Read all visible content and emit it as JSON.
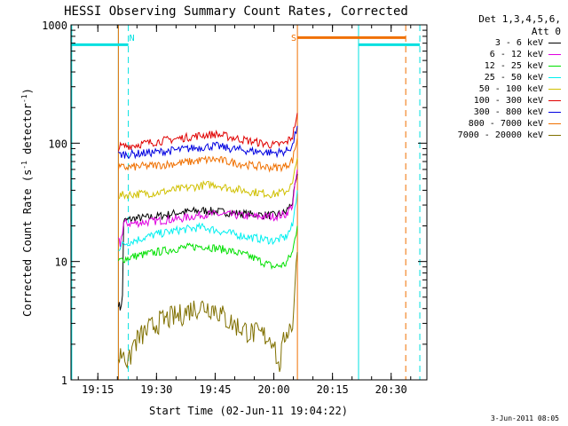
{
  "chart_data": {
    "type": "line",
    "title": "HESSI Observing Summary Count Rates, Corrected",
    "xlabel": "Start Time (02-Jun-11 19:04:22)",
    "ylabel_prefix": "Corrected Count Rate (s",
    "ylabel_exp1": "-1",
    "ylabel_mid": " detector",
    "ylabel_exp2": "-1",
    "ylabel_suffix": ")",
    "xlim": [
      19.1356,
      20.6523
    ],
    "ylim": [
      1,
      1000
    ],
    "yscale": "log",
    "x_ticks": [
      {
        "v": 19.25,
        "label": "19:15"
      },
      {
        "v": 19.5,
        "label": "19:30"
      },
      {
        "v": 19.75,
        "label": "19:45"
      },
      {
        "v": 20.0,
        "label": "20:00"
      },
      {
        "v": 20.25,
        "label": "20:15"
      },
      {
        "v": 20.5,
        "label": "20:30"
      }
    ],
    "y_ticks": [
      {
        "v": 1,
        "label": "1"
      },
      {
        "v": 10,
        "label": "10"
      },
      {
        "v": 100,
        "label": "100"
      },
      {
        "v": 1000,
        "label": "1000"
      }
    ],
    "legend_title": [
      "Det 1,3,4,5,6,",
      "Att 0"
    ],
    "legend_position": "right",
    "series": [
      {
        "name": "3 - 6 keV",
        "color": "#000000",
        "points": [
          [
            19.3375,
            4.5
          ],
          [
            19.345,
            4
          ],
          [
            19.355,
            5
          ],
          [
            19.36,
            22
          ],
          [
            19.4,
            23
          ],
          [
            19.5,
            24
          ],
          [
            19.6,
            26
          ],
          [
            19.7,
            27
          ],
          [
            19.8,
            26
          ],
          [
            19.9,
            25
          ],
          [
            20.0,
            24.5
          ],
          [
            20.05,
            26
          ],
          [
            20.08,
            32
          ],
          [
            20.1,
            55
          ]
        ]
      },
      {
        "name": "6 - 12 keV",
        "color": "#e000e0",
        "points": [
          [
            19.3375,
            15
          ],
          [
            19.345,
            14
          ],
          [
            19.355,
            18
          ],
          [
            19.36,
            21
          ],
          [
            19.4,
            21
          ],
          [
            19.5,
            22
          ],
          [
            19.6,
            23
          ],
          [
            19.7,
            25
          ],
          [
            19.8,
            25
          ],
          [
            19.9,
            24
          ],
          [
            20.0,
            24
          ],
          [
            20.05,
            25
          ],
          [
            20.08,
            30
          ],
          [
            20.1,
            60
          ]
        ]
      },
      {
        "name": "12 - 25 keV",
        "color": "#00e000",
        "points": [
          [
            19.3375,
            10
          ],
          [
            19.36,
            10.5
          ],
          [
            19.4,
            11
          ],
          [
            19.5,
            12
          ],
          [
            19.6,
            13
          ],
          [
            19.7,
            13.5
          ],
          [
            19.8,
            12.5
          ],
          [
            19.9,
            11
          ],
          [
            20.0,
            9
          ],
          [
            20.05,
            9.5
          ],
          [
            20.08,
            12
          ],
          [
            20.1,
            20
          ]
        ]
      },
      {
        "name": "25 - 50 keV",
        "color": "#00f0f0",
        "points": [
          [
            19.3375,
            13
          ],
          [
            19.36,
            14
          ],
          [
            19.4,
            15
          ],
          [
            19.5,
            17
          ],
          [
            19.6,
            18.5
          ],
          [
            19.7,
            19.5
          ],
          [
            19.8,
            17.5
          ],
          [
            19.9,
            16
          ],
          [
            20.0,
            15
          ],
          [
            20.05,
            16
          ],
          [
            20.08,
            20
          ],
          [
            20.1,
            40
          ]
        ]
      },
      {
        "name": "50 - 100 keV",
        "color": "#d0c000",
        "points": [
          [
            19.3375,
            36
          ],
          [
            19.4,
            37
          ],
          [
            19.5,
            38
          ],
          [
            19.6,
            41
          ],
          [
            19.7,
            44
          ],
          [
            19.75,
            45
          ],
          [
            19.8,
            42
          ],
          [
            19.9,
            39
          ],
          [
            20.0,
            37
          ],
          [
            20.05,
            39
          ],
          [
            20.08,
            45
          ],
          [
            20.1,
            75
          ]
        ]
      },
      {
        "name": "100 - 300 keV",
        "color": "#e00000",
        "points": [
          [
            19.3375,
            93
          ],
          [
            19.4,
            96
          ],
          [
            19.5,
            103
          ],
          [
            19.6,
            110
          ],
          [
            19.7,
            117
          ],
          [
            19.75,
            119
          ],
          [
            19.8,
            114
          ],
          [
            19.9,
            104
          ],
          [
            20.0,
            96
          ],
          [
            20.05,
            100
          ],
          [
            20.08,
            115
          ],
          [
            20.1,
            180
          ]
        ]
      },
      {
        "name": "300 - 800 keV",
        "color": "#0000e0",
        "points": [
          [
            19.3375,
            80
          ],
          [
            19.4,
            81
          ],
          [
            19.5,
            84
          ],
          [
            19.6,
            88
          ],
          [
            19.7,
            93
          ],
          [
            19.75,
            95
          ],
          [
            19.8,
            91
          ],
          [
            19.9,
            86
          ],
          [
            20.0,
            83
          ],
          [
            20.05,
            85
          ],
          [
            20.08,
            95
          ],
          [
            20.1,
            140
          ]
        ]
      },
      {
        "name": "800 - 7000 keV",
        "color": "#f07000",
        "points": [
          [
            19.3375,
            62
          ],
          [
            19.4,
            63
          ],
          [
            19.5,
            65
          ],
          [
            19.6,
            68
          ],
          [
            19.7,
            72
          ],
          [
            19.75,
            73
          ],
          [
            19.8,
            70
          ],
          [
            19.9,
            65
          ],
          [
            20.0,
            62
          ],
          [
            20.05,
            64
          ],
          [
            20.08,
            72
          ],
          [
            20.1,
            110
          ]
        ]
      },
      {
        "name": "7000 - 20000 keV",
        "color": "#807000",
        "points": [
          [
            19.3375,
            1.5
          ],
          [
            19.36,
            1.8
          ],
          [
            19.38,
            1.3
          ],
          [
            19.4,
            2.0
          ],
          [
            19.45,
            2.5
          ],
          [
            19.5,
            3.0
          ],
          [
            19.55,
            3.3
          ],
          [
            19.6,
            3.5
          ],
          [
            19.65,
            4.0
          ],
          [
            19.7,
            4.2
          ],
          [
            19.75,
            4.0
          ],
          [
            19.8,
            3.2
          ],
          [
            19.85,
            2.8
          ],
          [
            19.9,
            2.5
          ],
          [
            19.95,
            2.4
          ],
          [
            20.0,
            2.2
          ],
          [
            20.02,
            1.2
          ],
          [
            20.05,
            2.5
          ],
          [
            20.08,
            3.0
          ],
          [
            20.1,
            12
          ]
        ]
      }
    ],
    "annotations": [
      {
        "kind": "vline",
        "x": 19.1389,
        "color": "#00e0e0",
        "dash": false
      },
      {
        "kind": "vline",
        "x": 19.3375,
        "color": "#00e0e0",
        "dash": false
      },
      {
        "kind": "vline",
        "x": 19.38,
        "color": "#00e0e0",
        "dash": true
      },
      {
        "kind": "vline",
        "x": 19.3375,
        "color": "#f07000",
        "dash": false
      },
      {
        "kind": "vline",
        "x": 20.1005,
        "color": "#f07000",
        "dash": false
      },
      {
        "kind": "vline",
        "x": 20.3611,
        "color": "#00e0e0",
        "dash": false
      },
      {
        "kind": "vline",
        "x": 20.5622,
        "color": "#f07000",
        "dash": true
      },
      {
        "kind": "vline",
        "x": 20.6222,
        "color": "#00e0e0",
        "dash": true
      },
      {
        "kind": "hline",
        "x1": 19.1389,
        "x2": 19.38,
        "y": 680,
        "color": "#00e0e0"
      },
      {
        "kind": "hline",
        "x1": 20.3611,
        "x2": 20.6222,
        "y": 680,
        "color": "#00e0e0"
      },
      {
        "kind": "hline",
        "x1": 20.1005,
        "x2": 20.5622,
        "y": 780,
        "color": "#f07000"
      }
    ],
    "markers": [
      {
        "text": "N",
        "x": 19.395,
        "color": "#00e0e0"
      },
      {
        "text": "S",
        "x": 20.085,
        "color": "#f07000"
      }
    ]
  },
  "footer": "3-Jun-2011 08:05"
}
